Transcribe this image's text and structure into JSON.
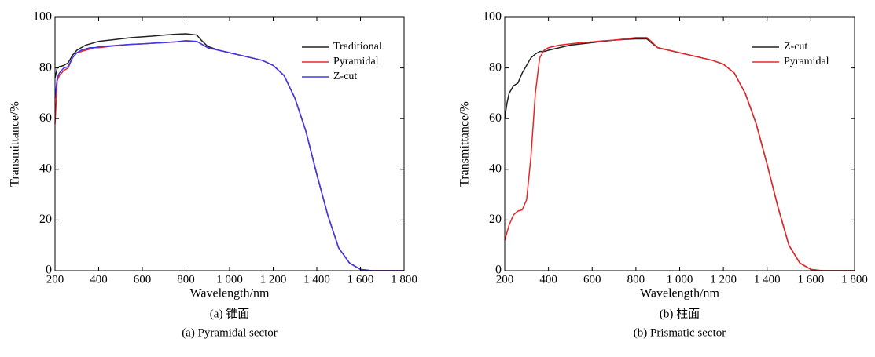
{
  "chart_data": [
    {
      "type": "line",
      "caption_zh": "(a) 锥面",
      "caption_en": "(a) Pyramidal sector",
      "xlabel": "Wavelength/nm",
      "ylabel": "Transmittance/%",
      "x": [
        200,
        210,
        220,
        240,
        260,
        280,
        300,
        320,
        340,
        360,
        380,
        400,
        450,
        500,
        550,
        600,
        650,
        700,
        750,
        800,
        850,
        870,
        900,
        950,
        1000,
        1050,
        1100,
        1150,
        1200,
        1250,
        1300,
        1350,
        1400,
        1450,
        1500,
        1550,
        1600,
        1650,
        1700,
        1750,
        1800
      ],
      "series": [
        {
          "name": "Traditional",
          "color": "#222222",
          "values": [
            76,
            80,
            80.5,
            81,
            82,
            85,
            87,
            88,
            89,
            89.5,
            90,
            90.5,
            91,
            91.5,
            92,
            92.3,
            92.6,
            93,
            93.3,
            93.5,
            93,
            91,
            88.5,
            87,
            86,
            85,
            84,
            83,
            81,
            77,
            68,
            55,
            38,
            22,
            9,
            3,
            0.5,
            0,
            0,
            0,
            0
          ]
        },
        {
          "name": "Pyramidal",
          "color": "#e8262a",
          "values": [
            58,
            75,
            77,
            79,
            80,
            84,
            86,
            86.5,
            87,
            87.5,
            88,
            88,
            88.5,
            89,
            89.3,
            89.5,
            89.8,
            90,
            90.3,
            90.5,
            90.5,
            89.5,
            88,
            87,
            86,
            85,
            84,
            83,
            81,
            77,
            68,
            55,
            38,
            22,
            9,
            3,
            0.5,
            0,
            0,
            0,
            0
          ]
        },
        {
          "name": "Z-cut",
          "color": "#3a3af0",
          "values": [
            68,
            76,
            78,
            80,
            80.5,
            84,
            86,
            87,
            87.5,
            88,
            88,
            88.3,
            88.7,
            89,
            89.3,
            89.5,
            89.8,
            90,
            90.3,
            90.8,
            90.5,
            89.5,
            88,
            87,
            86,
            85,
            84,
            83,
            81,
            77,
            68,
            55,
            38,
            22,
            9,
            3,
            0.5,
            0,
            0,
            0,
            0
          ]
        }
      ],
      "xlim": [
        200,
        1800
      ],
      "ylim": [
        0,
        100
      ],
      "xticks": [
        200,
        400,
        600,
        800,
        {
          "value": 1000,
          "label": "1 000"
        },
        {
          "value": 1200,
          "label": "1 200"
        },
        {
          "value": 1400,
          "label": "1 400"
        },
        {
          "value": 1600,
          "label": "1 600"
        },
        {
          "value": 1800,
          "label": "1 800"
        }
      ],
      "yticks": [
        0,
        20,
        40,
        60,
        80,
        100
      ],
      "legend": "upper right",
      "grid": false
    },
    {
      "type": "line",
      "caption_zh": "(b) 柱面",
      "caption_en": "(b) Prismatic sector",
      "xlabel": "Wavelength/nm",
      "ylabel": "Transmittance/%",
      "x": [
        200,
        210,
        220,
        240,
        260,
        280,
        300,
        320,
        340,
        360,
        380,
        400,
        450,
        500,
        550,
        600,
        650,
        700,
        750,
        800,
        850,
        870,
        900,
        950,
        1000,
        1050,
        1100,
        1150,
        1200,
        1250,
        1300,
        1350,
        1400,
        1450,
        1500,
        1550,
        1600,
        1650,
        1700,
        1750,
        1800
      ],
      "series": [
        {
          "name": "Z-cut",
          "color": "#222222",
          "values": [
            60,
            66,
            70,
            73,
            74,
            78,
            81,
            84,
            85.5,
            86.5,
            86.5,
            87,
            88,
            89,
            89.5,
            90,
            90.5,
            91,
            91.3,
            91.5,
            91.5,
            90,
            88,
            87,
            86,
            85,
            84,
            83,
            81.5,
            78,
            70,
            58,
            42,
            25,
            10,
            3,
            0.5,
            0,
            0,
            0,
            0
          ]
        },
        {
          "name": "Pyramidal",
          "color": "#e8262a",
          "values": [
            12,
            15,
            18,
            22,
            23.5,
            24,
            28,
            45,
            70,
            84,
            87,
            88,
            89,
            89.5,
            90,
            90.3,
            90.7,
            91,
            91.5,
            92,
            92,
            90.5,
            88,
            87,
            86,
            85,
            84,
            83,
            81.5,
            78,
            70,
            58,
            42,
            25,
            10,
            3,
            0.5,
            0,
            0,
            0,
            0
          ]
        }
      ],
      "xlim": [
        200,
        1800
      ],
      "ylim": [
        0,
        100
      ],
      "xticks": [
        200,
        400,
        600,
        800,
        {
          "value": 1000,
          "label": "1 000"
        },
        {
          "value": 1200,
          "label": "1 200"
        },
        {
          "value": 1400,
          "label": "1 400"
        },
        {
          "value": 1600,
          "label": "1 600"
        },
        {
          "value": 1800,
          "label": "1 800"
        }
      ],
      "yticks": [
        0,
        20,
        40,
        60,
        80,
        100
      ],
      "legend": "upper right",
      "grid": false
    }
  ]
}
